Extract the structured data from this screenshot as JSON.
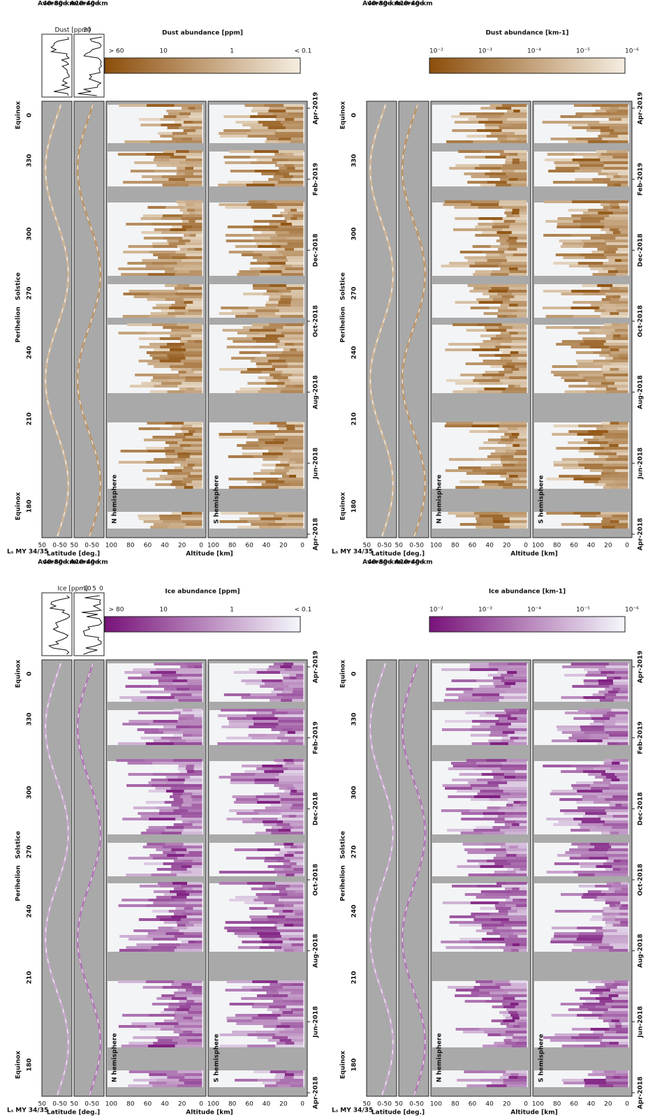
{
  "panels": [
    {
      "title": "Lₛ MY 34/35",
      "scheme": "dust",
      "ls_ticks": [
        "180",
        "210",
        "240",
        "270",
        "300",
        "330",
        "0"
      ],
      "ls_notes": [
        "Equinox",
        "Perihelion",
        "Solstice",
        "Equinox"
      ],
      "lat_label": "Latitude [deg.]",
      "lat_ticks": [
        "50",
        "0",
        "-50"
      ],
      "alt_label": "Altitude [km]",
      "alt_ticks": [
        "100",
        "80",
        "60",
        "40",
        "20",
        "0"
      ],
      "hemispheres": [
        "N hemisphere",
        "S hemisphere"
      ],
      "date_ticks": [
        "Apr-2018",
        "Jun-2018",
        "Aug-2018",
        "Oct-2018",
        "Dec-2018",
        "Feb-2019",
        "Apr-2019"
      ],
      "colorbar": {
        "label": "Dust abundance [ppm]",
        "ticks": [
          "> 60",
          "10",
          "1",
          "< 0.1"
        ]
      },
      "averages": [
        [
          "Average",
          "40-80 km"
        ],
        [
          "Average",
          "10-40 km"
        ]
      ],
      "inset": {
        "label": "Dust [ppm]",
        "ticks": [
          "20"
        ]
      }
    },
    {
      "title": "Lₛ MY 34/35",
      "scheme": "dust",
      "ls_ticks": [
        "180",
        "210",
        "240",
        "270",
        "300",
        "330",
        "0"
      ],
      "ls_notes": [
        "Equinox",
        "Perihelion",
        "Solstice",
        "Equinox"
      ],
      "lat_label": "Latitude [deg.]",
      "lat_ticks": [
        "50",
        "0",
        "-50"
      ],
      "alt_label": "Altitude [km]",
      "alt_ticks": [
        "100",
        "80",
        "60",
        "40",
        "20",
        "0"
      ],
      "hemispheres": [
        "N hemisphere",
        "S hemisphere"
      ],
      "date_ticks": [
        "Apr-2018",
        "Jun-2018",
        "Aug-2018",
        "Oct-2018",
        "Dec-2018",
        "Feb-2019",
        "Apr-2019"
      ],
      "colorbar": {
        "label": "Dust abundance [km-1]",
        "ticks": [
          "10⁻²",
          "10⁻³",
          "10⁻⁴",
          "10⁻⁵",
          "10⁻⁶"
        ]
      },
      "averages": [
        [
          "Average",
          "40-80 km"
        ],
        [
          "Average",
          "10-40 km"
        ]
      ]
    },
    {
      "title": "Lₛ MY 34/35",
      "scheme": "ice",
      "ls_ticks": [
        "180",
        "210",
        "240",
        "270",
        "300",
        "330",
        "0"
      ],
      "ls_notes": [
        "Equinox",
        "Perihelion",
        "Solstice",
        "Equinox"
      ],
      "lat_label": "Latitude [deg.]",
      "lat_ticks": [
        "50",
        "0",
        "-50"
      ],
      "alt_label": "Altitude [km]",
      "alt_ticks": [
        "100",
        "80",
        "60",
        "40",
        "20",
        "0"
      ],
      "hemispheres": [
        "N hemisphere",
        "S hemisphere"
      ],
      "date_ticks": [
        "Apr-2018",
        "Jun-2018",
        "Aug-2018",
        "Oct-2018",
        "Dec-2018",
        "Feb-2019",
        "Apr-2019"
      ],
      "colorbar": {
        "label": "Ice abundance [ppm]",
        "ticks": [
          "> 80",
          "10",
          "1",
          "< 0.1"
        ]
      },
      "averages": [
        [
          "Average",
          "40-80 km"
        ],
        [
          "Average",
          "10-40 km"
        ]
      ],
      "inset": {
        "label": "Ice [ppm]",
        "ticks": [
          "10",
          "5",
          "0"
        ]
      }
    },
    {
      "title": "Lₛ MY 34/35",
      "scheme": "ice",
      "ls_ticks": [
        "180",
        "210",
        "240",
        "270",
        "300",
        "330",
        "0"
      ],
      "ls_notes": [
        "Equinox",
        "Perihelion",
        "Solstice",
        "Equinox"
      ],
      "lat_label": "Latitude [deg.]",
      "lat_ticks": [
        "50",
        "0",
        "-50"
      ],
      "alt_label": "Altitude [km]",
      "alt_ticks": [
        "100",
        "80",
        "60",
        "40",
        "20",
        "0"
      ],
      "hemispheres": [
        "N hemisphere",
        "S hemisphere"
      ],
      "date_ticks": [
        "Apr-2018",
        "Jun-2018",
        "Aug-2018",
        "Oct-2018",
        "Dec-2018",
        "Feb-2019",
        "Apr-2019"
      ],
      "colorbar": {
        "label": "Ice abundance [km-1]",
        "ticks": [
          "10⁻²",
          "10⁻³",
          "10⁻⁴",
          "10⁻⁵",
          "10⁻⁶"
        ]
      },
      "averages": [
        [
          "Average",
          "40-80 km"
        ],
        [
          "Average",
          "10-40 km"
        ]
      ]
    }
  ]
}
